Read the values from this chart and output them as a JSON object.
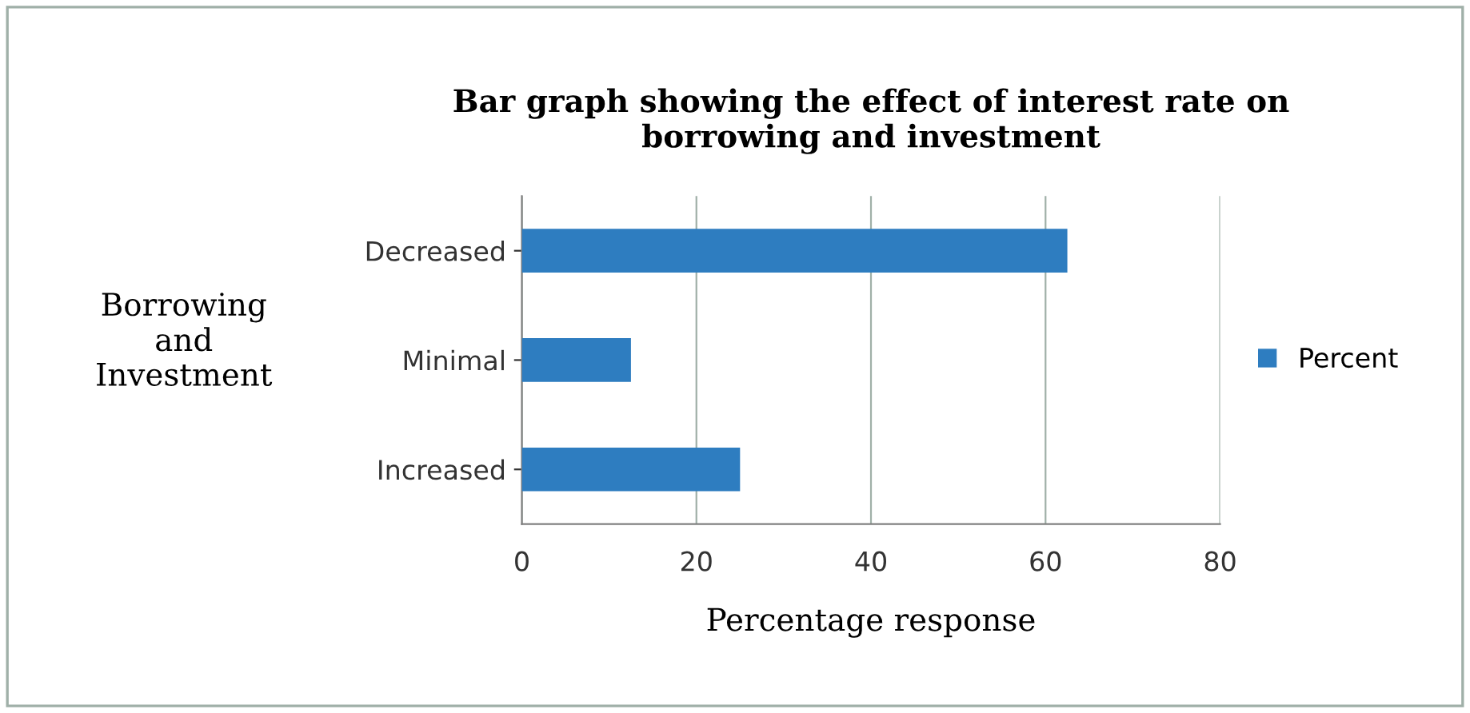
{
  "chart_data": {
    "type": "bar",
    "orientation": "horizontal",
    "title": "Bar graph showing the effect of interest rate on\nborrowing and investment",
    "xlabel": "Percentage response",
    "ylabel": "Borrowing\nand\nInvestment",
    "categories": [
      "Decreased",
      "Minimal",
      "Increased"
    ],
    "series": [
      {
        "name": "Percent",
        "color": "#2e7dc0",
        "values": [
          62.5,
          12.5,
          25
        ]
      }
    ],
    "xlim": [
      0,
      80
    ],
    "xticks": [
      0,
      20,
      40,
      60,
      80
    ],
    "grid": "x",
    "legend": "right"
  }
}
